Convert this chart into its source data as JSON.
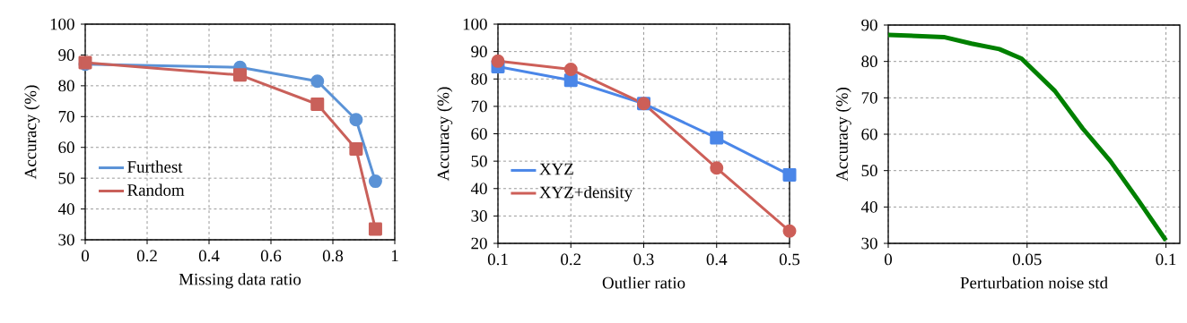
{
  "chart_data": [
    {
      "type": "line",
      "xlabel": "Missing data ratio",
      "ylabel": "Accuracy (%)",
      "x": [
        0,
        0.5,
        0.75,
        0.875,
        0.9375
      ],
      "series": [
        {
          "name": "Furthest",
          "color": "#5a92d6",
          "marker": "circle",
          "values": [
            87,
            86,
            81.5,
            69,
            49
          ]
        },
        {
          "name": "Random",
          "color": "#c9605a",
          "marker": "square",
          "values": [
            87.5,
            83.5,
            74,
            59.5,
            33.5
          ]
        }
      ],
      "xlim": [
        0,
        1
      ],
      "ylim": [
        30,
        100
      ],
      "xticks": [
        0,
        0.2,
        0.4,
        0.6,
        0.8,
        1
      ],
      "yticks": [
        30,
        40,
        50,
        60,
        70,
        80,
        90,
        100
      ],
      "grid": true,
      "legend": "left"
    },
    {
      "type": "line",
      "xlabel": "Outlier ratio",
      "ylabel": "Accuracy (%)",
      "x": [
        0.1,
        0.2,
        0.3,
        0.4,
        0.5
      ],
      "series": [
        {
          "name": "XYZ",
          "color": "#4a86e8",
          "marker": "square",
          "values": [
            84.5,
            79.5,
            71,
            58.5,
            45
          ]
        },
        {
          "name": "XYZ+density",
          "color": "#cd5f58",
          "marker": "circle",
          "values": [
            86.5,
            83.5,
            71,
            47.5,
            24.5
          ]
        }
      ],
      "xlim": [
        0.1,
        0.5
      ],
      "ylim": [
        20,
        100
      ],
      "xticks": [
        0.1,
        0.2,
        0.3,
        0.4,
        0.5
      ],
      "yticks": [
        20,
        30,
        40,
        50,
        60,
        70,
        80,
        90,
        100
      ],
      "grid": true,
      "legend": "left"
    },
    {
      "type": "line",
      "xlabel": "Perturbation noise std",
      "ylabel": "Accuracy (%)",
      "x": [
        0,
        0.02,
        0.03,
        0.04,
        0.048,
        0.06,
        0.07,
        0.08,
        0.09,
        0.1
      ],
      "series": [
        {
          "color": "#008000",
          "values": [
            87.3,
            86.7,
            84.9,
            83.4,
            80.8,
            71.9,
            61.6,
            52.6,
            41.9,
            30.8
          ]
        }
      ],
      "xlim": [
        0,
        0.105
      ],
      "ylim": [
        30,
        90
      ],
      "xticks": [
        0,
        0.05,
        0.1
      ],
      "yticks": [
        30,
        40,
        50,
        60,
        70,
        80,
        90
      ],
      "grid": true,
      "marker": "none"
    }
  ]
}
